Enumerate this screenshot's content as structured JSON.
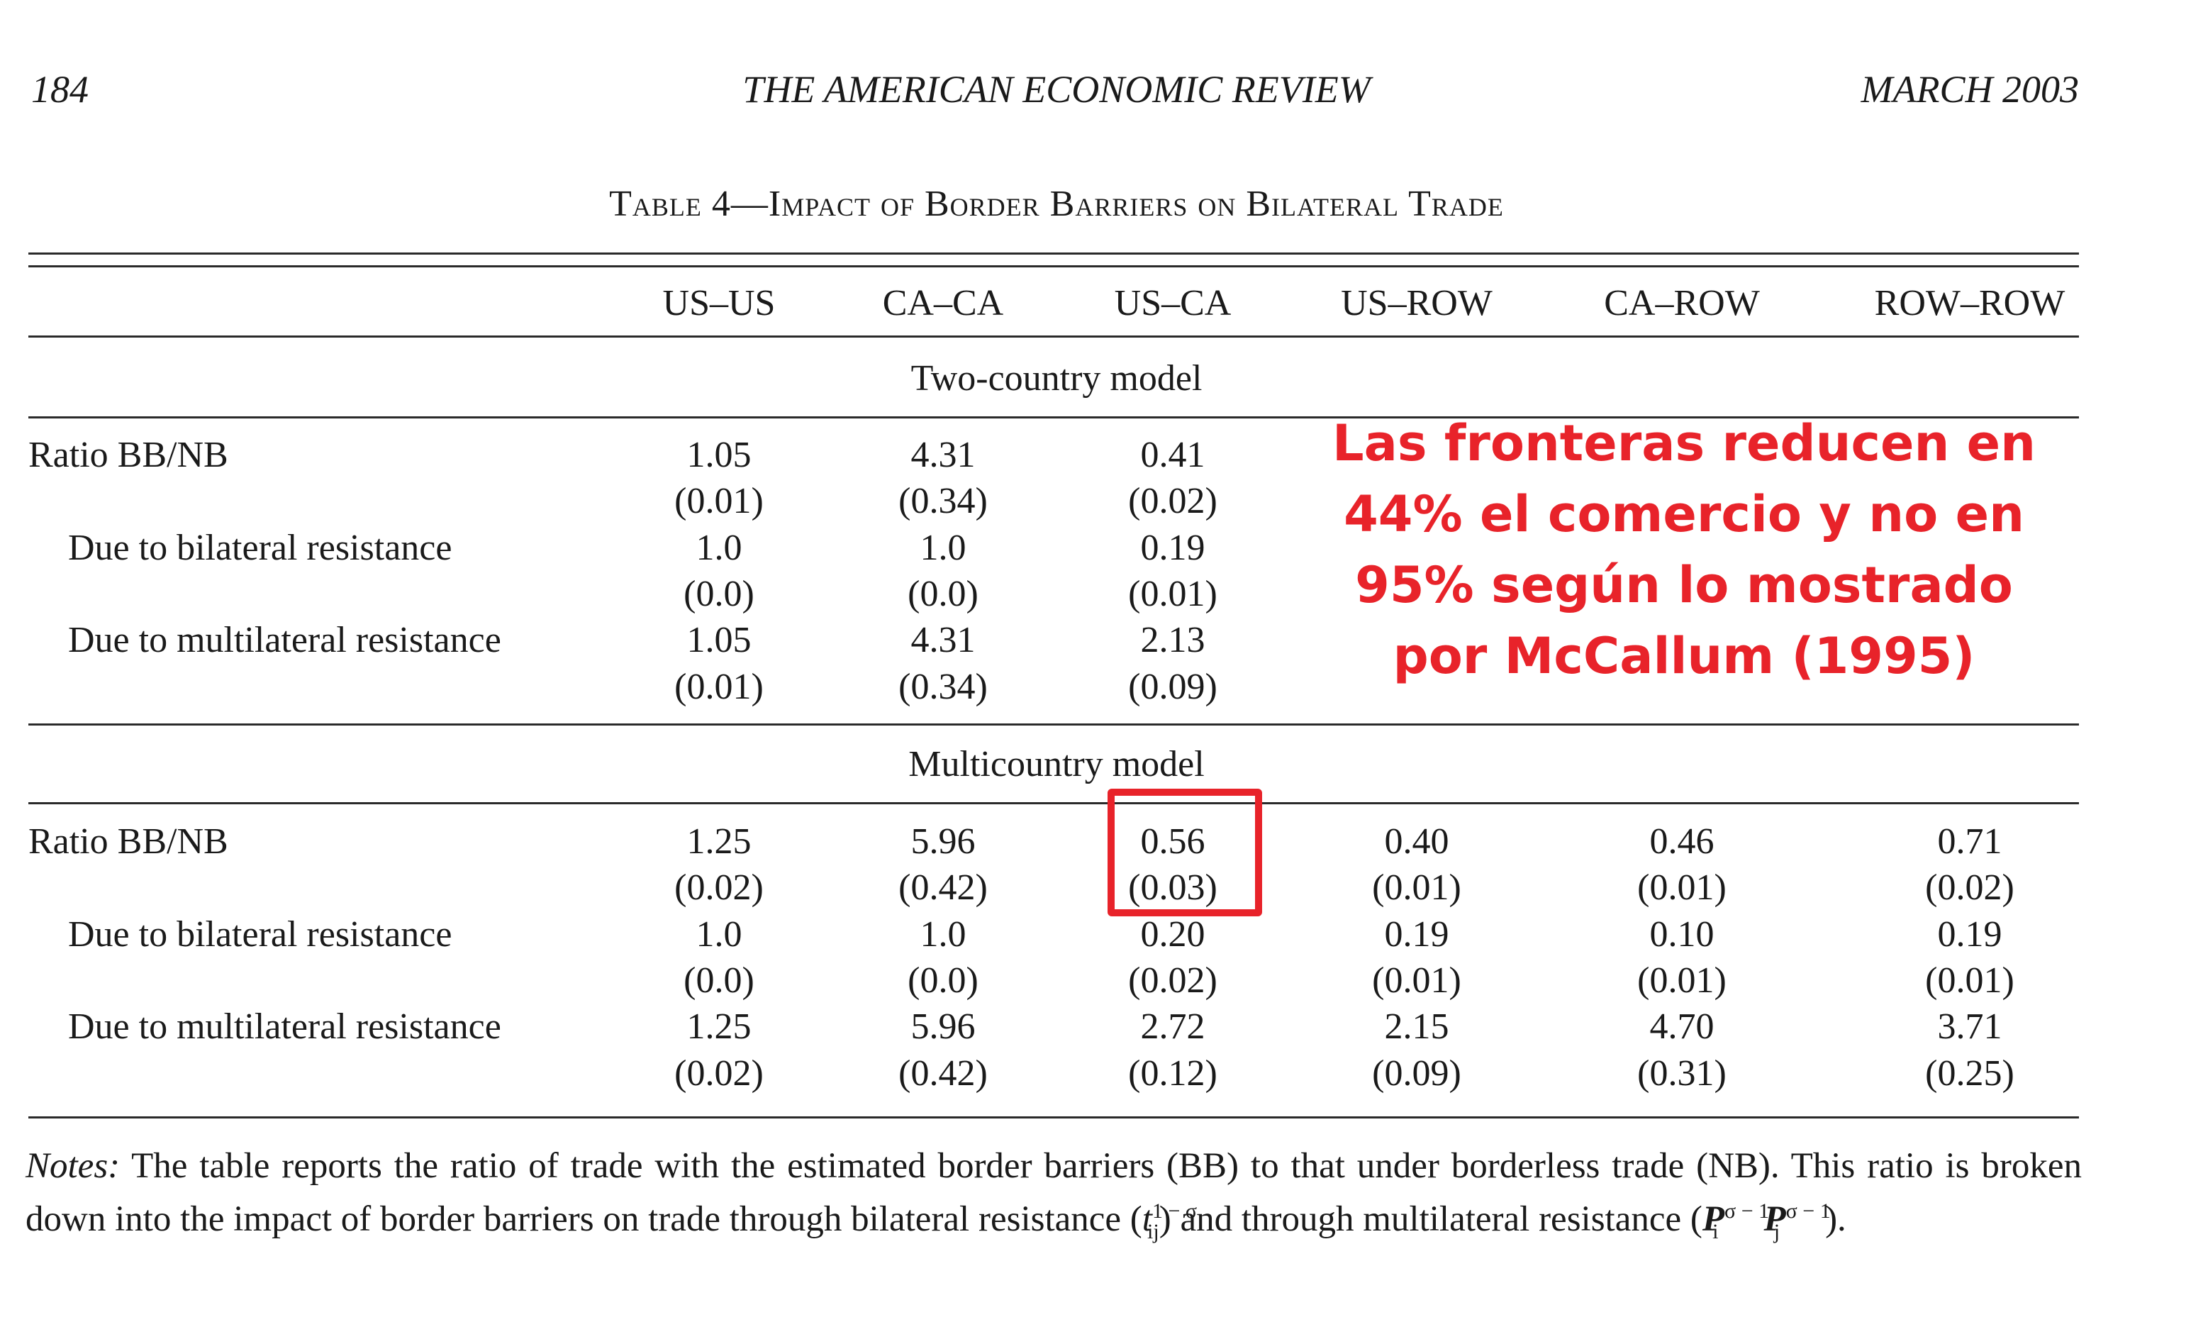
{
  "header": {
    "page_number": "184",
    "journal": "THE AMERICAN ECONOMIC REVIEW",
    "issue": "MARCH 2003"
  },
  "table": {
    "title_prefix": "Table 4—",
    "title_text": "Impact of Border Barriers on Bilateral Trade",
    "columns": [
      "US–US",
      "CA–CA",
      "US–CA",
      "US–ROW",
      "CA–ROW",
      "ROW–ROW"
    ],
    "sections": [
      {
        "name": "Two-country model",
        "rows": [
          {
            "label": "Ratio BB/NB",
            "values": [
              "1.05",
              "4.31",
              "0.41"
            ],
            "se": [
              "(0.01)",
              "(0.34)",
              "(0.02)"
            ]
          },
          {
            "label": "Due to bilateral resistance",
            "values": [
              "1.0",
              "1.0",
              "0.19"
            ],
            "se": [
              "(0.0)",
              "(0.0)",
              "(0.01)"
            ]
          },
          {
            "label": "Due to multilateral resistance",
            "values": [
              "1.05",
              "4.31",
              "2.13"
            ],
            "se": [
              "(0.01)",
              "(0.34)",
              "(0.09)"
            ]
          }
        ]
      },
      {
        "name": "Multicountry model",
        "rows": [
          {
            "label": "Ratio BB/NB",
            "values": [
              "1.25",
              "5.96",
              "0.56",
              "0.40",
              "0.46",
              "0.71"
            ],
            "se": [
              "(0.02)",
              "(0.42)",
              "(0.03)",
              "(0.01)",
              "(0.01)",
              "(0.02)"
            ]
          },
          {
            "label": "Due to bilateral resistance",
            "values": [
              "1.0",
              "1.0",
              "0.20",
              "0.19",
              "0.10",
              "0.19"
            ],
            "se": [
              "(0.0)",
              "(0.0)",
              "(0.02)",
              "(0.01)",
              "(0.01)",
              "(0.01)"
            ]
          },
          {
            "label": "Due to multilateral resistance",
            "values": [
              "1.25",
              "5.96",
              "2.72",
              "2.15",
              "4.70",
              "3.71"
            ],
            "se": [
              "(0.02)",
              "(0.42)",
              "(0.12)",
              "(0.09)",
              "(0.31)",
              "(0.25)"
            ]
          }
        ]
      }
    ]
  },
  "notes": {
    "lead": "Notes:",
    "text_1": " The table reports the ratio of trade with the estimated border barriers (BB) to that under borderless trade (NB). This ratio is broken down into the impact of border barriers on trade through bilateral resistance (",
    "bilateral_base": "t",
    "bilateral_sup": "1 − σ",
    "bilateral_sub": "ij",
    "text_2": ") and through multilateral resistance (",
    "multi_base_i": "P",
    "multi_sup_i": "σ − 1",
    "multi_sub_i": "i",
    "multi_base_j": "P",
    "multi_sup_j": "σ − 1",
    "multi_sub_j": "j",
    "text_3": ")."
  },
  "annotation": {
    "callout_text": "Las fronteras reducen en 44% el comercio y no en 95% según lo mostrado por McCallum (1995)",
    "color": "#e8232a"
  }
}
